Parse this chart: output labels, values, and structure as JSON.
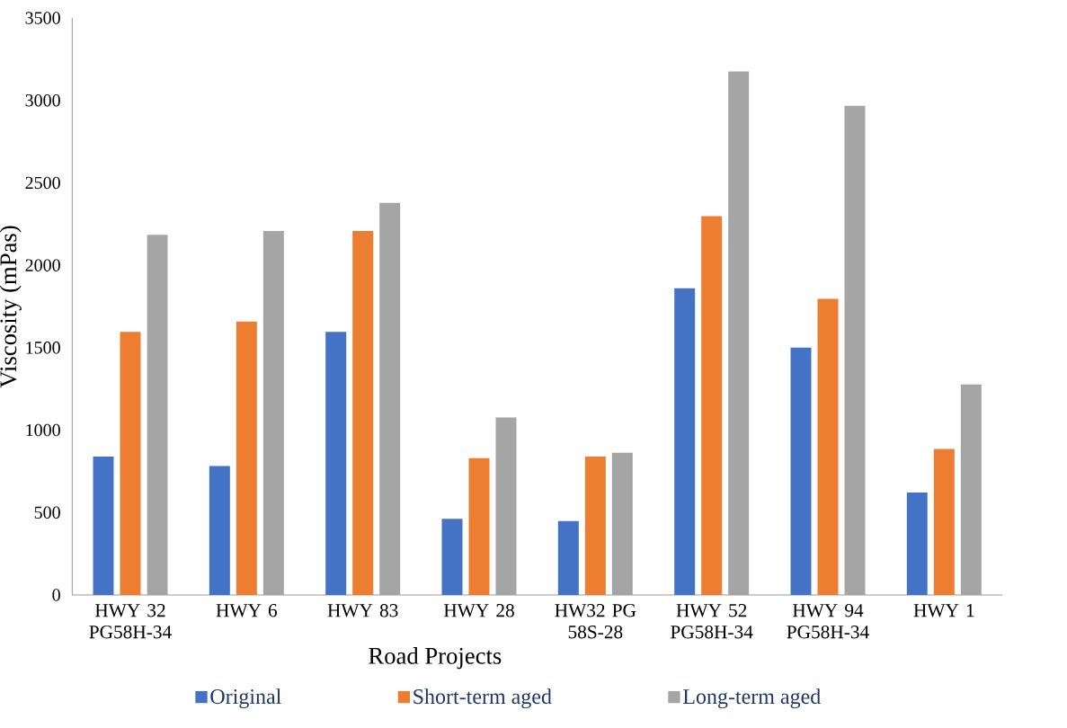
{
  "chart_data": {
    "type": "bar",
    "xlabel": "Road Projects",
    "ylabel": "Viscosity (mPas)",
    "categories": [
      "HWY 32 PG58H-34",
      "HWY 6",
      "HWY 83",
      "HWY 28",
      "HW32 PG 58S-28",
      "HWY 52 PG58H-34",
      "HWY 94 PG58H-34",
      "HWY 1"
    ],
    "series": [
      {
        "name": "Original",
        "color": "#4472c4",
        "values": [
          839,
          782,
          1596,
          462,
          448,
          1860,
          1501,
          622
        ]
      },
      {
        "name": "Short-term aged",
        "color": "#ed7d31",
        "values": [
          1596,
          1659,
          2208,
          830,
          839,
          2298,
          1796,
          886
        ]
      },
      {
        "name": "Long-term aged",
        "color": "#a5a5a5",
        "values": [
          2185,
          2208,
          2378,
          1077,
          863,
          3175,
          2967,
          1277
        ]
      }
    ],
    "ylim": [
      0,
      3500
    ],
    "yticks": [
      0,
      500,
      1000,
      1500,
      2000,
      2500,
      3000,
      3500
    ],
    "grid": false,
    "legend": "bottom"
  }
}
